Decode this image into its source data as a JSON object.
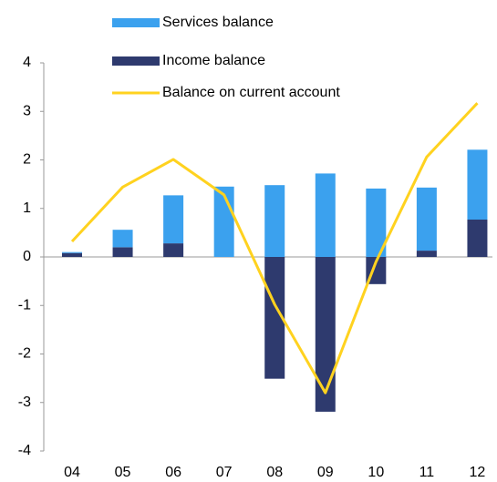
{
  "chart_data": {
    "type": "bar",
    "stacked": true,
    "categories": [
      "04",
      "05",
      "06",
      "07",
      "08",
      "09",
      "10",
      "11",
      "12"
    ],
    "series": [
      {
        "name": "Services balance",
        "type": "bar",
        "color": "#3ba1ee",
        "values": [
          0.02,
          0.36,
          0.99,
          1.45,
          1.48,
          1.72,
          1.41,
          1.3,
          1.44
        ]
      },
      {
        "name": "Income balance",
        "type": "bar",
        "color": "#2e3a6e",
        "values": [
          0.08,
          0.2,
          0.28,
          0,
          -2.51,
          -3.19,
          -0.56,
          0.13,
          0.77
        ]
      },
      {
        "name": "Balance on current account",
        "type": "line",
        "color": "#ffd21f",
        "values": [
          0.32,
          1.44,
          2.01,
          1.28,
          -0.98,
          -2.8,
          -0.1,
          2.06,
          3.17
        ]
      }
    ],
    "ylim": [
      -4,
      4
    ],
    "yticks": [
      -4,
      -3,
      -2,
      -1,
      0,
      1,
      2,
      3,
      4
    ]
  }
}
